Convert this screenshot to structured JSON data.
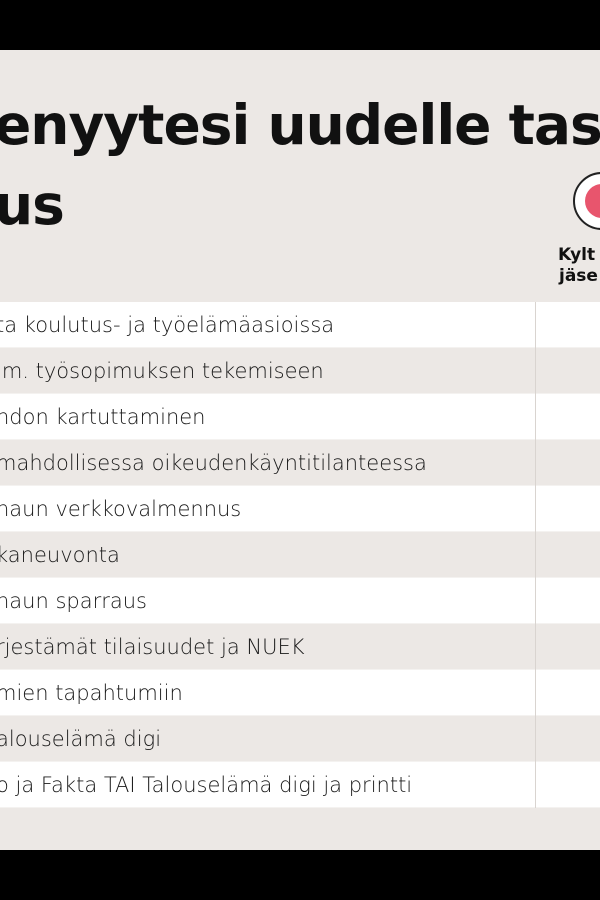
{
  "title": {
    "line1": "enyytesi uudelle tasol",
    "line2": "us"
  },
  "column_header": {
    "line1": "Kylt",
    "line2": "jäse",
    "badge_color": "#e8556d"
  },
  "rows": [
    {
      "label": "ta koulutus- ja työelämäasioissa"
    },
    {
      "label": "im. työsopimuksen tekemiseen"
    },
    {
      "label": "ndon kartuttaminen"
    },
    {
      "label": "mahdollisessa oikeudenkäyntitilanteessa"
    },
    {
      "label": "haun verkkovalmennus"
    },
    {
      "label": "kaneuvonta"
    },
    {
      "label": "haun sparraus"
    },
    {
      "label": "rjestämät tilaisuudet ja NUEK"
    },
    {
      "label": "mien tapahtumiin"
    },
    {
      "label": "alouselämä digi"
    },
    {
      "label": "o ja Fakta TAI Talouselämä digi ja printti"
    }
  ]
}
